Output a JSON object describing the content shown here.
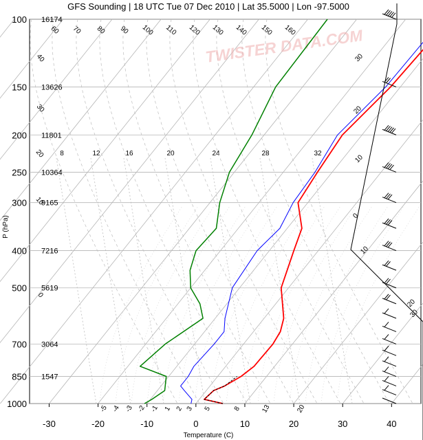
{
  "chart_data": {
    "type": "line",
    "title": "GFS Sounding | 18 UTC Tue 07 Dec 2010 | Lat 35.5000 | Lon -97.5000",
    "xlabel": "Temperature (C)",
    "ylabel": "P (hPa)",
    "xlim": [
      -34,
      46
    ],
    "ylim": [
      1000,
      100
    ],
    "y_scale": "log",
    "x_ticks": [
      -30,
      -20,
      -10,
      0,
      10,
      20,
      30,
      40
    ],
    "y_ticks": [
      100,
      150,
      200,
      250,
      300,
      400,
      500,
      700,
      850,
      1000
    ],
    "heights": [
      {
        "p": 100,
        "label": "16174"
      },
      {
        "p": 150,
        "label": "13626"
      },
      {
        "p": 200,
        "label": "11801"
      },
      {
        "p": 250,
        "label": "10364"
      },
      {
        "p": 300,
        "label": "9165"
      },
      {
        "p": 400,
        "label": "7216"
      },
      {
        "p": 500,
        "label": "5619"
      },
      {
        "p": 700,
        "label": "3064"
      },
      {
        "p": 850,
        "label": "1547"
      }
    ],
    "background_labels": {
      "mixing_ratio": [
        "8",
        "12",
        "16",
        "20",
        "24",
        "28",
        "32"
      ],
      "dry_adiabat_labels": [
        "60",
        "70",
        "80",
        "90",
        "100",
        "110",
        "120",
        "130",
        "140",
        "150",
        "160"
      ],
      "dry_adiabat_left_labels": [
        "40",
        "30",
        "20",
        "10",
        "0"
      ],
      "moist_adiabat_labels": [
        "30",
        "20",
        "10",
        "0",
        "10",
        "20",
        "30"
      ],
      "bottom_labels": [
        "-5",
        "-4",
        "-3",
        "-2",
        "-1",
        "1",
        "2",
        "3",
        "5",
        "8",
        "13",
        "20"
      ]
    },
    "series": [
      {
        "name": "temperature",
        "color": "#ff0000",
        "points": [
          {
            "p": 1000,
            "t": 5.5
          },
          {
            "p": 975,
            "t": 1.0
          },
          {
            "p": 925,
            "t": 1.5
          },
          {
            "p": 900,
            "t": 3.0
          },
          {
            "p": 850,
            "t": 4.8
          },
          {
            "p": 800,
            "t": 5.8
          },
          {
            "p": 700,
            "t": 6.0
          },
          {
            "p": 650,
            "t": 5.5
          },
          {
            "p": 600,
            "t": 4.0
          },
          {
            "p": 500,
            "t": -1.5
          },
          {
            "p": 400,
            "t": -5.0
          },
          {
            "p": 350,
            "t": -7.0
          },
          {
            "p": 300,
            "t": -12.0
          },
          {
            "p": 250,
            "t": -13.0
          },
          {
            "p": 200,
            "t": -14.0
          },
          {
            "p": 150,
            "t": -12.0
          },
          {
            "p": 100,
            "t": -11.0
          }
        ]
      },
      {
        "name": "dewpoint",
        "color": "#0000ff",
        "points": [
          {
            "p": 1000,
            "t": -1.0
          },
          {
            "p": 975,
            "t": -1.5
          },
          {
            "p": 925,
            "t": -4.5
          },
          {
            "p": 900,
            "t": -6.0
          },
          {
            "p": 850,
            "t": -6.0
          },
          {
            "p": 800,
            "t": -6.5
          },
          {
            "p": 700,
            "t": -6.0
          },
          {
            "p": 650,
            "t": -6.0
          },
          {
            "p": 600,
            "t": -8.0
          },
          {
            "p": 500,
            "t": -11.5
          },
          {
            "p": 400,
            "t": -12.5
          },
          {
            "p": 350,
            "t": -11.5
          },
          {
            "p": 300,
            "t": -13.0
          },
          {
            "p": 250,
            "t": -13.5
          },
          {
            "p": 200,
            "t": -15.0
          },
          {
            "p": 150,
            "t": -13.0
          },
          {
            "p": 100,
            "t": -12.5
          }
        ]
      },
      {
        "name": "parcel",
        "color": "#000000",
        "points": [
          {
            "p": 1000,
            "t": 5.5
          },
          {
            "p": 975,
            "t": 1.0
          },
          {
            "p": 925,
            "t": 1.5
          },
          {
            "p": 900,
            "t": 3.0
          },
          {
            "p": 850,
            "t": 4.0
          }
        ]
      },
      {
        "name": "wetbulb",
        "color": "#008000",
        "points": [
          {
            "p": 1000,
            "t": -10.5
          },
          {
            "p": 975,
            "t": -9.7
          },
          {
            "p": 925,
            "t": -8.5
          },
          {
            "p": 850,
            "t": -10.5
          },
          {
            "p": 800,
            "t": -17.5
          },
          {
            "p": 700,
            "t": -16.0
          },
          {
            "p": 600,
            "t": -12.5
          },
          {
            "p": 550,
            "t": -15.5
          },
          {
            "p": 500,
            "t": -20.0
          },
          {
            "p": 450,
            "t": -23.0
          },
          {
            "p": 400,
            "t": -25.0
          },
          {
            "p": 350,
            "t": -24.5
          },
          {
            "p": 300,
            "t": -28.0
          },
          {
            "p": 250,
            "t": -31.0
          },
          {
            "p": 200,
            "t": -32.5
          },
          {
            "p": 150,
            "t": -35.5
          },
          {
            "p": 100,
            "t": -36.0
          }
        ]
      }
    ],
    "wind_barbs": [
      {
        "p": 100,
        "flags": 5
      },
      {
        "p": 150,
        "flags": 2
      },
      {
        "p": 200,
        "flags": 5
      },
      {
        "p": 250,
        "flags": 4
      },
      {
        "p": 300,
        "flags": 3
      },
      {
        "p": 350,
        "flags": 3
      },
      {
        "p": 400,
        "flags": 3
      },
      {
        "p": 450,
        "flags": 2
      },
      {
        "p": 500,
        "flags": 2
      },
      {
        "p": 550,
        "flags": 2
      },
      {
        "p": 600,
        "flags": 1
      },
      {
        "p": 650,
        "flags": 1
      },
      {
        "p": 700,
        "flags": 1
      },
      {
        "p": 750,
        "flags": 1
      },
      {
        "p": 800,
        "flags": 1
      },
      {
        "p": 850,
        "flags": 1
      },
      {
        "p": 900,
        "flags": 1
      },
      {
        "p": 950,
        "flags": 1
      },
      {
        "p": 1000,
        "flags": 0
      }
    ],
    "watermark": "TWISTER DATA.COM",
    "colors": {
      "background": "#ffffff",
      "temperature": "#ff0000",
      "dewpoint": "#0000ff",
      "wetbulb": "#008000",
      "parcel": "#000000",
      "grid": "#b5b5b5",
      "dashed_grid": "#bcbcbc",
      "hodograph": "#000000"
    }
  }
}
